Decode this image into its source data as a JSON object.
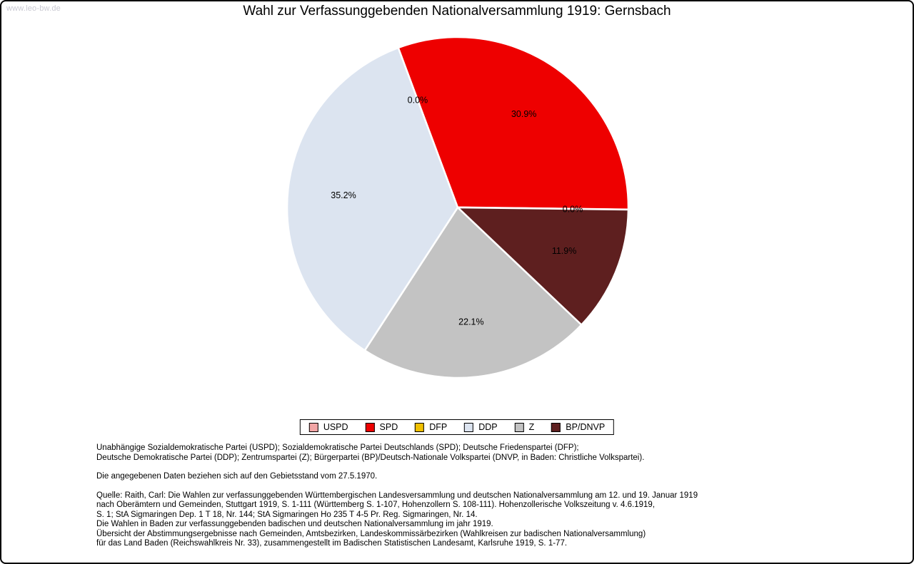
{
  "watermark": "www.leo-bw.de",
  "chart_data": {
    "type": "pie",
    "title": "Wahl zur Verfassunggebenden Nationalversammlung 1919: Gernsbach",
    "legend_position": "bottom",
    "direction": "clockwise",
    "start_angle_deg": -20.4,
    "draw_order": [
      "USPD",
      "SPD",
      "DFP",
      "BP/DNVP",
      "Z",
      "DDP"
    ],
    "series": [
      {
        "name": "USPD",
        "value": 0.0,
        "label": "0.0%",
        "color": "#f2a5a5"
      },
      {
        "name": "SPD",
        "value": 30.9,
        "label": "30.9%",
        "color": "#ee0000"
      },
      {
        "name": "DFP",
        "value": 0.0,
        "label": "0.0%",
        "color": "#f0c000"
      },
      {
        "name": "DDP",
        "value": 35.2,
        "label": "35.2%",
        "color": "#dce4f0"
      },
      {
        "name": "Z",
        "value": 22.1,
        "label": "22.1%",
        "color": "#c3c3c3"
      },
      {
        "name": "BP/DNVP",
        "value": 11.9,
        "label": "11.9%",
        "color": "#5e1f1f"
      }
    ]
  },
  "notes": {
    "party_legend": "Unabhängige Sozialdemokratische Partei (USPD); Sozialdemokratische Partei Deutschlands (SPD); Deutsche Friedenspartei (DFP);\nDeutsche Demokratische Partei (DDP); Zentrumspartei (Z); Bürgerpartei (BP)/Deutsch-Nationale Volkspartei (DNVP, in Baden: Christliche Volkspartei).",
    "data_note": "Die angegebenen Daten beziehen sich auf den Gebietsstand vom 27.5.1970.",
    "source": "Quelle: Raith, Carl: Die Wahlen zur verfassunggebenden Württembergischen Landesversammlung und deutschen Nationalversammlung am 12. und 19. Januar 1919\nnach Oberämtern und Gemeinden, Stuttgart 1919, S. 1-111 (Württemberg S. 1-107, Hohenzollern S. 108-111). Hohenzollerische Volkszeitung v. 4.6.1919,\nS. 1; StA Sigmaringen Dep. 1 T 18, Nr. 144; StA Sigmaringen Ho 235 T 4-5 Pr. Reg. Sigmaringen, Nr. 14.\nDie Wahlen in Baden zur verfassunggebenden badischen und deutschen Nationalversammlung im jahr 1919.\nÜbersicht der Abstimmungsergebnisse nach Gemeinden, Amtsbezirken, Landeskommissärbezirken (Wahlkreisen zur badischen Nationalversammlung)\nfür das Land Baden (Reichswahlkreis Nr. 33), zusammengestellt im Badischen Statistischen Landesamt, Karlsruhe 1919, S. 1-77."
  }
}
